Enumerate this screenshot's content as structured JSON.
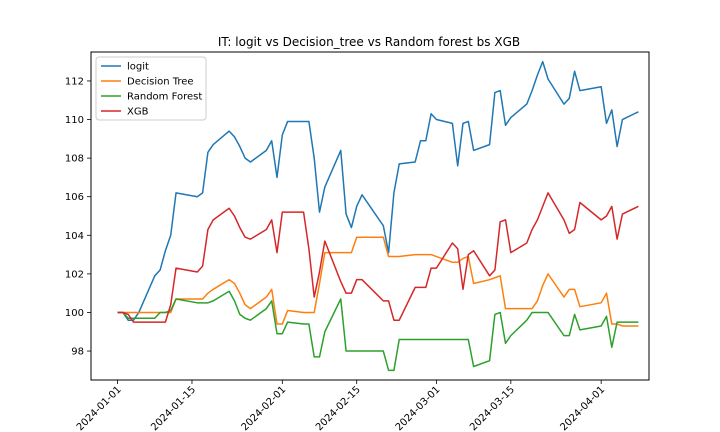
{
  "chart_data": {
    "type": "line",
    "title": "IT: logit vs Decision_tree vs Random forest bs XGB",
    "xlabel": "",
    "ylabel": "",
    "xlim": [
      "2023-12-27",
      "2024-04-10"
    ],
    "ylim": [
      96.5,
      113.5
    ],
    "grid": false,
    "legend": "upper left",
    "x_ticks": [
      "2024-01-01",
      "2024-01-15",
      "2024-02-01",
      "2024-02-15",
      "2024-03-01",
      "2024-03-15",
      "2024-04-01"
    ],
    "y_ticks": [
      98,
      100,
      102,
      104,
      106,
      108,
      110,
      112
    ],
    "series": [
      {
        "name": "logit",
        "color": "#1f77b4",
        "x": [
          "2024-01-01",
          "2024-01-02",
          "2024-01-03",
          "2024-01-04",
          "2024-01-05",
          "2024-01-08",
          "2024-01-09",
          "2024-01-10",
          "2024-01-11",
          "2024-01-12",
          "2024-01-16",
          "2024-01-17",
          "2024-01-18",
          "2024-01-19",
          "2024-01-22",
          "2024-01-23",
          "2024-01-24",
          "2024-01-25",
          "2024-01-26",
          "2024-01-29",
          "2024-01-30",
          "2024-01-31",
          "2024-02-01",
          "2024-02-02",
          "2024-02-05",
          "2024-02-06",
          "2024-02-07",
          "2024-02-08",
          "2024-02-09",
          "2024-02-12",
          "2024-02-13",
          "2024-02-14",
          "2024-02-15",
          "2024-02-16",
          "2024-02-20",
          "2024-02-21",
          "2024-02-22",
          "2024-02-23",
          "2024-02-26",
          "2024-02-27",
          "2024-02-28",
          "2024-02-29",
          "2024-03-01",
          "2024-03-04",
          "2024-03-05",
          "2024-03-06",
          "2024-03-07",
          "2024-03-08",
          "2024-03-11",
          "2024-03-12",
          "2024-03-13",
          "2024-03-14",
          "2024-03-15",
          "2024-03-18",
          "2024-03-19",
          "2024-03-20",
          "2024-03-21",
          "2024-03-22",
          "2024-03-25",
          "2024-03-26",
          "2024-03-27",
          "2024-03-28",
          "2024-04-01",
          "2024-04-02",
          "2024-04-03",
          "2024-04-04",
          "2024-04-05",
          "2024-04-08"
        ],
        "values": [
          100.0,
          100.0,
          99.6,
          99.6,
          100.0,
          101.9,
          102.2,
          103.2,
          104.0,
          106.2,
          106.0,
          106.2,
          108.3,
          108.7,
          109.4,
          109.1,
          108.6,
          108.0,
          107.8,
          108.4,
          108.9,
          107.0,
          109.2,
          109.9,
          109.9,
          109.9,
          108.0,
          105.2,
          106.5,
          108.4,
          105.1,
          104.4,
          105.5,
          106.1,
          104.5,
          103.1,
          106.2,
          107.7,
          107.8,
          108.9,
          108.9,
          110.3,
          110.0,
          109.8,
          107.6,
          109.8,
          109.9,
          108.4,
          108.7,
          111.4,
          111.5,
          109.7,
          110.1,
          110.8,
          111.5,
          112.3,
          113.0,
          112.1,
          110.8,
          111.1,
          112.5,
          111.5,
          111.7,
          109.8,
          110.5,
          108.6,
          110.0,
          110.4
        ]
      },
      {
        "name": "Decision Tree",
        "color": "#ff7f0e",
        "x": [
          "2024-01-01",
          "2024-01-02",
          "2024-01-03",
          "2024-01-04",
          "2024-01-05",
          "2024-01-08",
          "2024-01-09",
          "2024-01-10",
          "2024-01-11",
          "2024-01-12",
          "2024-01-16",
          "2024-01-17",
          "2024-01-18",
          "2024-01-19",
          "2024-01-22",
          "2024-01-23",
          "2024-01-24",
          "2024-01-25",
          "2024-01-26",
          "2024-01-29",
          "2024-01-30",
          "2024-01-31",
          "2024-02-01",
          "2024-02-02",
          "2024-02-05",
          "2024-02-06",
          "2024-02-07",
          "2024-02-08",
          "2024-02-09",
          "2024-02-12",
          "2024-02-13",
          "2024-02-14",
          "2024-02-15",
          "2024-02-16",
          "2024-02-20",
          "2024-02-21",
          "2024-02-22",
          "2024-02-23",
          "2024-02-26",
          "2024-02-27",
          "2024-02-28",
          "2024-02-29",
          "2024-03-01",
          "2024-03-04",
          "2024-03-05",
          "2024-03-06",
          "2024-03-07",
          "2024-03-08",
          "2024-03-11",
          "2024-03-12",
          "2024-03-13",
          "2024-03-14",
          "2024-03-15",
          "2024-03-18",
          "2024-03-19",
          "2024-03-20",
          "2024-03-21",
          "2024-03-22",
          "2024-03-25",
          "2024-03-26",
          "2024-03-27",
          "2024-03-28",
          "2024-04-01",
          "2024-04-02",
          "2024-04-03",
          "2024-04-04",
          "2024-04-05",
          "2024-04-08"
        ],
        "values": [
          100.0,
          100.0,
          100.0,
          100.0,
          100.0,
          100.0,
          100.0,
          100.0,
          100.0,
          100.7,
          100.7,
          100.7,
          101.0,
          101.2,
          101.7,
          101.5,
          101.0,
          100.4,
          100.2,
          100.8,
          101.2,
          99.4,
          99.4,
          100.1,
          100.0,
          100.0,
          100.0,
          101.5,
          103.1,
          103.1,
          103.1,
          103.1,
          103.9,
          103.9,
          103.9,
          102.9,
          102.9,
          102.9,
          103.0,
          103.0,
          103.0,
          103.0,
          102.9,
          102.6,
          102.6,
          102.8,
          102.9,
          101.5,
          101.7,
          101.8,
          101.9,
          100.2,
          100.2,
          100.2,
          100.2,
          100.6,
          101.4,
          102.0,
          100.8,
          101.2,
          101.2,
          100.3,
          100.5,
          101.0,
          99.4,
          99.4,
          99.3,
          99.3
        ]
      },
      {
        "name": "Random Forest",
        "color": "#2ca02c",
        "x": [
          "2024-01-01",
          "2024-01-02",
          "2024-01-03",
          "2024-01-04",
          "2024-01-05",
          "2024-01-08",
          "2024-01-09",
          "2024-01-10",
          "2024-01-11",
          "2024-01-12",
          "2024-01-16",
          "2024-01-17",
          "2024-01-18",
          "2024-01-19",
          "2024-01-22",
          "2024-01-23",
          "2024-01-24",
          "2024-01-25",
          "2024-01-26",
          "2024-01-29",
          "2024-01-30",
          "2024-01-31",
          "2024-02-01",
          "2024-02-02",
          "2024-02-05",
          "2024-02-06",
          "2024-02-07",
          "2024-02-08",
          "2024-02-09",
          "2024-02-12",
          "2024-02-13",
          "2024-02-14",
          "2024-02-15",
          "2024-02-16",
          "2024-02-20",
          "2024-02-21",
          "2024-02-22",
          "2024-02-23",
          "2024-02-26",
          "2024-02-27",
          "2024-02-28",
          "2024-02-29",
          "2024-03-01",
          "2024-03-04",
          "2024-03-05",
          "2024-03-06",
          "2024-03-07",
          "2024-03-08",
          "2024-03-11",
          "2024-03-12",
          "2024-03-13",
          "2024-03-14",
          "2024-03-15",
          "2024-03-18",
          "2024-03-19",
          "2024-03-20",
          "2024-03-21",
          "2024-03-22",
          "2024-03-25",
          "2024-03-26",
          "2024-03-27",
          "2024-03-28",
          "2024-04-01",
          "2024-04-02",
          "2024-04-03",
          "2024-04-04",
          "2024-04-05",
          "2024-04-08"
        ],
        "values": [
          100.0,
          100.0,
          99.7,
          99.7,
          99.7,
          99.7,
          100.0,
          100.0,
          100.1,
          100.7,
          100.5,
          100.5,
          100.5,
          100.6,
          101.1,
          100.6,
          99.9,
          99.7,
          99.6,
          100.2,
          100.6,
          98.9,
          98.9,
          99.5,
          99.4,
          99.4,
          97.7,
          97.7,
          99.0,
          100.7,
          98.0,
          98.0,
          98.0,
          98.0,
          98.0,
          97.0,
          97.0,
          98.6,
          98.6,
          98.6,
          98.6,
          98.6,
          98.6,
          98.6,
          98.6,
          98.6,
          98.6,
          97.2,
          97.5,
          99.9,
          100.0,
          98.4,
          98.8,
          99.6,
          100.0,
          100.0,
          100.0,
          100.0,
          98.8,
          98.8,
          99.9,
          99.1,
          99.3,
          99.8,
          98.2,
          99.5,
          99.5,
          99.5
        ]
      },
      {
        "name": "XGB",
        "color": "#d62728",
        "x": [
          "2024-01-01",
          "2024-01-02",
          "2024-01-03",
          "2024-01-04",
          "2024-01-05",
          "2024-01-08",
          "2024-01-09",
          "2024-01-10",
          "2024-01-11",
          "2024-01-12",
          "2024-01-16",
          "2024-01-17",
          "2024-01-18",
          "2024-01-19",
          "2024-01-22",
          "2024-01-23",
          "2024-01-24",
          "2024-01-25",
          "2024-01-26",
          "2024-01-29",
          "2024-01-30",
          "2024-01-31",
          "2024-02-01",
          "2024-02-02",
          "2024-02-05",
          "2024-02-06",
          "2024-02-07",
          "2024-02-08",
          "2024-02-09",
          "2024-02-12",
          "2024-02-13",
          "2024-02-14",
          "2024-02-15",
          "2024-02-16",
          "2024-02-20",
          "2024-02-21",
          "2024-02-22",
          "2024-02-23",
          "2024-02-26",
          "2024-02-27",
          "2024-02-28",
          "2024-02-29",
          "2024-03-01",
          "2024-03-04",
          "2024-03-05",
          "2024-03-06",
          "2024-03-07",
          "2024-03-08",
          "2024-03-11",
          "2024-03-12",
          "2024-03-13",
          "2024-03-14",
          "2024-03-15",
          "2024-03-18",
          "2024-03-19",
          "2024-03-20",
          "2024-03-21",
          "2024-03-22",
          "2024-03-25",
          "2024-03-26",
          "2024-03-27",
          "2024-03-28",
          "2024-04-01",
          "2024-04-02",
          "2024-04-03",
          "2024-04-04",
          "2024-04-05",
          "2024-04-08"
        ],
        "values": [
          100.0,
          100.0,
          99.9,
          99.5,
          99.5,
          99.5,
          99.5,
          99.5,
          100.4,
          102.3,
          102.1,
          102.4,
          104.3,
          104.8,
          105.4,
          105.0,
          104.4,
          103.9,
          103.8,
          104.3,
          104.8,
          103.1,
          105.2,
          105.2,
          105.2,
          103.3,
          100.8,
          102.1,
          103.7,
          101.6,
          101.0,
          101.0,
          101.7,
          101.7,
          100.6,
          100.6,
          99.6,
          99.6,
          101.3,
          101.3,
          101.3,
          102.3,
          102.3,
          103.6,
          103.3,
          101.2,
          103.0,
          103.2,
          101.9,
          102.2,
          104.7,
          104.8,
          103.1,
          103.6,
          104.3,
          104.8,
          105.5,
          106.2,
          104.8,
          104.1,
          104.3,
          105.7,
          104.8,
          105.0,
          105.5,
          103.8,
          105.1,
          105.5
        ]
      }
    ]
  }
}
